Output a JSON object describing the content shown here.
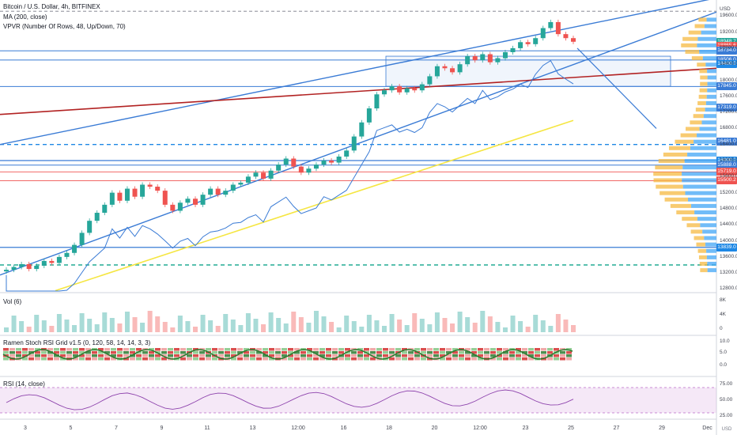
{
  "header": {
    "symbol_line": "Bitcoin / U.S. Dollar, 4h, BITFINEX",
    "ma_line": "MA (200, close)",
    "vpvr_line": "VPVR (Number Of Rows, 48, Up/Down, 70)"
  },
  "currency": "USD",
  "colors": {
    "up": "#26a69a",
    "down": "#ef5350",
    "trend_blue": "#3a7bd5",
    "ma_red": "#b22222",
    "ma_yellow": "#f5e642",
    "dashed_blue": "#1e88e5",
    "dashed_green": "#22ab94",
    "vp_up": "#f5b942",
    "vp_down": "#42a5f5"
  },
  "chart_data": [
    {
      "type": "candlestick",
      "title": "Bitcoin / U.S. Dollar, 4h, BITFINEX",
      "ylim": [
        12750,
        20000
      ],
      "y_ticks": [
        "19600.0",
        "19200.0",
        "18800.0",
        "18400.0",
        "18000.0",
        "17600.0",
        "17200.0",
        "16800.0",
        "16400.0",
        "16000.0",
        "15600.0",
        "15200.0",
        "14800.0",
        "14400.0",
        "14000.0",
        "13600.0",
        "13200.0",
        "12800.0"
      ],
      "x_ticks": [
        "3",
        "5",
        "7",
        "9",
        "11",
        "13",
        "12:00",
        "16",
        "18",
        "20",
        "12:00",
        "23",
        "25",
        "27",
        "29",
        "Dec"
      ],
      "close_series": [
        13280,
        13350,
        13420,
        13300,
        13380,
        13500,
        13450,
        13600,
        13700,
        13900,
        14200,
        14500,
        14700,
        14900,
        15200,
        15000,
        15300,
        15100,
        15400,
        15350,
        15250,
        14900,
        14750,
        14950,
        15050,
        14900,
        15150,
        15300,
        15150,
        15250,
        15400,
        15450,
        15600,
        15700,
        15550,
        15750,
        15900,
        16050,
        15850,
        15700,
        15800,
        15900,
        16000,
        15950,
        16100,
        16250,
        16600,
        16950,
        17300,
        17650,
        17750,
        17850,
        17700,
        17800,
        17750,
        17900,
        18100,
        18350,
        18300,
        18200,
        18400,
        18600,
        18500,
        18650,
        18450,
        18550,
        18700,
        18800,
        18950,
        18900,
        19050,
        19300,
        19450,
        19150,
        19050,
        18960
      ],
      "price_labels": [
        {
          "text": "18948.7",
          "color": "#26a69a"
        },
        {
          "text": "18865.6",
          "color": "#ef5350"
        },
        {
          "text": "01:41:11",
          "color": "#ef5350"
        },
        {
          "text": "18734.0",
          "color": "#3a7bd5"
        },
        {
          "text": "18506.0",
          "color": "#3a7bd5"
        },
        {
          "text": "18400.0",
          "color": "#1e88e5"
        },
        {
          "text": "17845.0",
          "color": "#3a7bd5"
        },
        {
          "text": "17319.0",
          "color": "#3a7bd5"
        },
        {
          "text": "16481.0",
          "color": "#3a7bd5"
        },
        {
          "text": "16000.0",
          "color": "#1e88e5"
        },
        {
          "text": "15888.0",
          "color": "#3a7bd5"
        },
        {
          "text": "15719.0",
          "color": "#ef5350"
        },
        {
          "text": "15500.2",
          "color": "#ef5350"
        },
        {
          "text": "13839.0",
          "color": "#1e88e5"
        }
      ]
    },
    {
      "type": "bar",
      "title": "Vol (6)",
      "y_ticks": [
        "8K",
        "4K",
        "0"
      ]
    },
    {
      "type": "heatmap",
      "title": "Ramen Stoch RSI Grid v1.5 (0, 120, 58, 14, 14, 3, 3)",
      "y_ticks": [
        "10.0",
        "5.0",
        "0.0"
      ]
    },
    {
      "type": "line",
      "title": "RSI (14, close)",
      "y_ticks": [
        "75.00",
        "50.00",
        "25.00"
      ]
    }
  ],
  "ui": {
    "corner_button": "USD"
  }
}
